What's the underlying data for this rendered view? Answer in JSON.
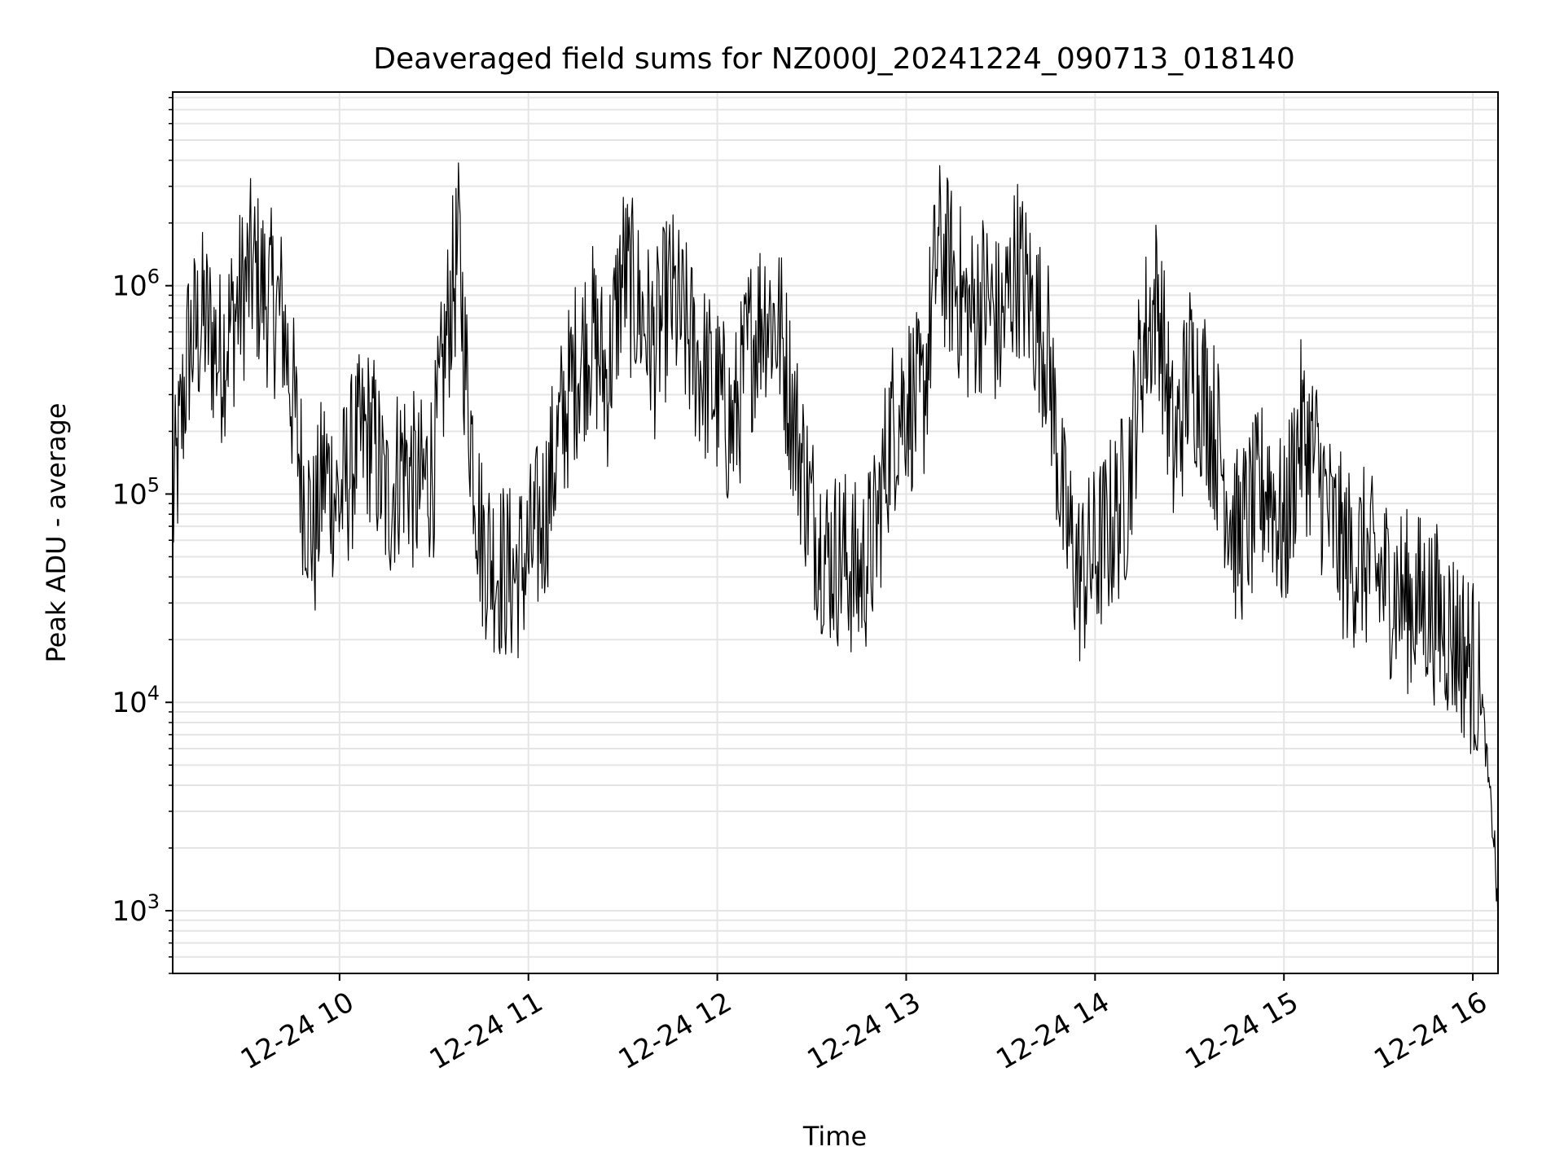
{
  "chart_data": {
    "type": "line",
    "title": "Deaveraged field sums for NZ000J_20241224_090713_018140",
    "xlabel": "Time",
    "ylabel": "Peak ADU - average",
    "y_scale": "log",
    "grid": true,
    "line_color": "#000000",
    "grid_color": "#e5e5e5",
    "x_tick_labels": [
      "12-24 10",
      "12-24 11",
      "12-24 12",
      "12-24 13",
      "12-24 14",
      "12-24 15",
      "12-24 16"
    ],
    "xlim": [
      "2024-12-24 09:07",
      "2024-12-24 16:08"
    ],
    "ylim": [
      500,
      8500000
    ],
    "y_ticks": [
      {
        "base": "10",
        "exp": "3",
        "value": 1000
      },
      {
        "base": "10",
        "exp": "4",
        "value": 10000
      },
      {
        "base": "10",
        "exp": "5",
        "value": 100000
      },
      {
        "base": "10",
        "exp": "6",
        "value": 1000000
      }
    ],
    "series": [
      {
        "name": "",
        "points": [
          [
            "2024-12-24 09:07",
            80000
          ],
          [
            "2024-12-24 09:12",
            500000
          ],
          [
            "2024-12-24 09:17",
            700000
          ],
          [
            "2024-12-24 09:22",
            450000
          ],
          [
            "2024-12-24 09:27",
            750000
          ],
          [
            "2024-12-24 09:32",
            1200000
          ],
          [
            "2024-12-24 09:37",
            900000
          ],
          [
            "2024-12-24 09:42",
            700000
          ],
          [
            "2024-12-24 09:45",
            300000
          ],
          [
            "2024-12-24 09:48",
            120000
          ],
          [
            "2024-12-24 09:52",
            60000
          ],
          [
            "2024-12-24 09:55",
            130000
          ],
          [
            "2024-12-24 10:00",
            90000
          ],
          [
            "2024-12-24 10:05",
            160000
          ],
          [
            "2024-12-24 10:10",
            200000
          ],
          [
            "2024-12-24 10:15",
            90000
          ],
          [
            "2024-12-24 10:20",
            150000
          ],
          [
            "2024-12-24 10:25",
            100000
          ],
          [
            "2024-12-24 10:30",
            140000
          ],
          [
            "2024-12-24 10:35",
            800000
          ],
          [
            "2024-12-24 10:38",
            1500000
          ],
          [
            "2024-12-24 10:40",
            400000
          ],
          [
            "2024-12-24 10:45",
            60000
          ],
          [
            "2024-12-24 10:50",
            45000
          ],
          [
            "2024-12-24 10:55",
            40000
          ],
          [
            "2024-12-24 11:00",
            50000
          ],
          [
            "2024-12-24 11:05",
            80000
          ],
          [
            "2024-12-24 11:10",
            200000
          ],
          [
            "2024-12-24 11:15",
            400000
          ],
          [
            "2024-12-24 11:20",
            600000
          ],
          [
            "2024-12-24 11:25",
            350000
          ],
          [
            "2024-12-24 11:30",
            1200000
          ],
          [
            "2024-12-24 11:35",
            800000
          ],
          [
            "2024-12-24 11:40",
            500000
          ],
          [
            "2024-12-24 11:45",
            900000
          ],
          [
            "2024-12-24 11:50",
            600000
          ],
          [
            "2024-12-24 11:55",
            400000
          ],
          [
            "2024-12-24 12:00",
            300000
          ],
          [
            "2024-12-24 12:05",
            200000
          ],
          [
            "2024-12-24 12:10",
            500000
          ],
          [
            "2024-12-24 12:15",
            800000
          ],
          [
            "2024-12-24 12:20",
            600000
          ],
          [
            "2024-12-24 12:25",
            200000
          ],
          [
            "2024-12-24 12:30",
            80000
          ],
          [
            "2024-12-24 12:35",
            50000
          ],
          [
            "2024-12-24 12:40",
            50000
          ],
          [
            "2024-12-24 12:45",
            40000
          ],
          [
            "2024-12-24 12:50",
            60000
          ],
          [
            "2024-12-24 12:55",
            200000
          ],
          [
            "2024-12-24 13:00",
            300000
          ],
          [
            "2024-12-24 13:05",
            250000
          ],
          [
            "2024-12-24 13:10",
            1500000
          ],
          [
            "2024-12-24 13:15",
            1100000
          ],
          [
            "2024-12-24 13:20",
            700000
          ],
          [
            "2024-12-24 13:25",
            900000
          ],
          [
            "2024-12-24 13:30",
            600000
          ],
          [
            "2024-12-24 13:35",
            1300000
          ],
          [
            "2024-12-24 13:40",
            800000
          ],
          [
            "2024-12-24 13:45",
            500000
          ],
          [
            "2024-12-24 13:50",
            80000
          ],
          [
            "2024-12-24 13:55",
            40000
          ],
          [
            "2024-12-24 14:00",
            50000
          ],
          [
            "2024-12-24 14:05",
            70000
          ],
          [
            "2024-12-24 14:10",
            100000
          ],
          [
            "2024-12-24 14:15",
            500000
          ],
          [
            "2024-12-24 14:20",
            900000
          ],
          [
            "2024-12-24 14:25",
            150000
          ],
          [
            "2024-12-24 14:30",
            400000
          ],
          [
            "2024-12-24 14:35",
            300000
          ],
          [
            "2024-12-24 14:40",
            150000
          ],
          [
            "2024-12-24 14:45",
            60000
          ],
          [
            "2024-12-24 14:50",
            80000
          ],
          [
            "2024-12-24 14:55",
            120000
          ],
          [
            "2024-12-24 15:00",
            60000
          ],
          [
            "2024-12-24 15:05",
            200000
          ],
          [
            "2024-12-24 15:10",
            150000
          ],
          [
            "2024-12-24 15:15",
            70000
          ],
          [
            "2024-12-24 15:20",
            50000
          ],
          [
            "2024-12-24 15:25",
            50000
          ],
          [
            "2024-12-24 15:30",
            40000
          ],
          [
            "2024-12-24 15:35",
            35000
          ],
          [
            "2024-12-24 15:40",
            30000
          ],
          [
            "2024-12-24 15:45",
            30000
          ],
          [
            "2024-12-24 15:50",
            25000
          ],
          [
            "2024-12-24 15:55",
            20000
          ],
          [
            "2024-12-24 16:00",
            15000
          ],
          [
            "2024-12-24 16:03",
            10000
          ],
          [
            "2024-12-24 16:05",
            4000
          ],
          [
            "2024-12-24 16:07",
            2000
          ],
          [
            "2024-12-24 16:08",
            800
          ]
        ]
      }
    ]
  }
}
